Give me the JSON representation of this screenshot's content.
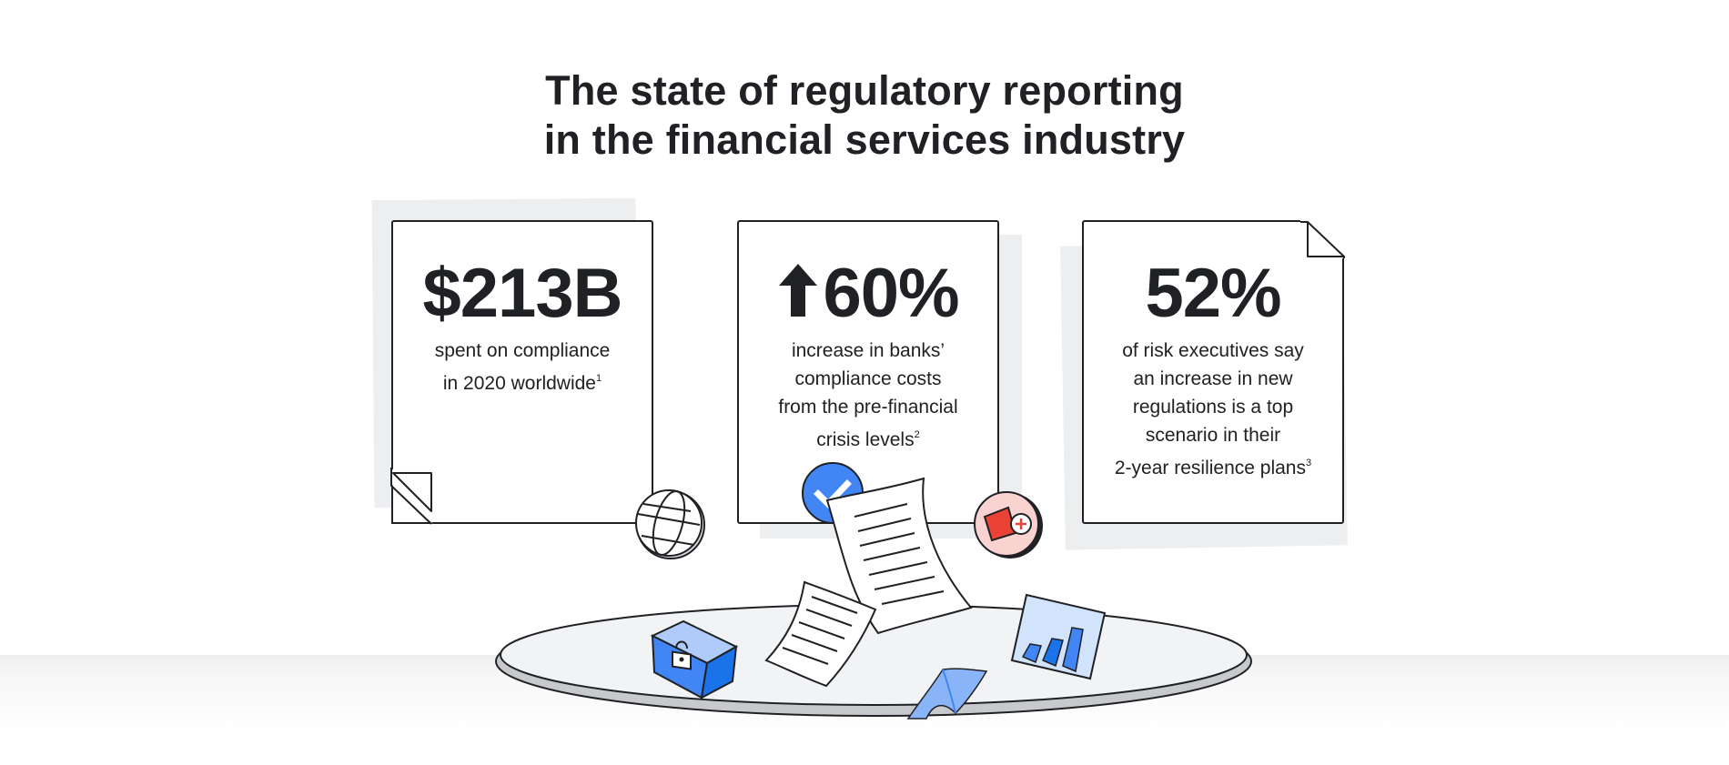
{
  "title": {
    "line1": "The state of regulatory reporting",
    "line2": "in the financial services industry"
  },
  "stats": [
    {
      "value": "$213B",
      "lines": [
        "spent on compliance",
        "in 2020 worldwide"
      ],
      "footnote": "1"
    },
    {
      "value": "60%",
      "prefix_icon": "arrow-up-icon",
      "lines": [
        "increase in banks’",
        "compliance costs",
        "from the pre-financial",
        "crisis levels"
      ],
      "footnote": "2"
    },
    {
      "value": "52%",
      "lines": [
        "of risk executives say",
        "an increase in new",
        "regulations is a top",
        "scenario in their",
        "2-year resilience plans"
      ],
      "footnote": "3"
    }
  ],
  "icons": [
    "globe-icon",
    "checkmark-badge-icon",
    "alert-badge-icon",
    "lock-cube-icon",
    "bar-chart-icon",
    "document-icon"
  ],
  "colors": {
    "text": "#202124",
    "blue": "#4285f4",
    "red": "#ea4335",
    "light_red": "#fad2cf",
    "shadow_gray": "#eceeef"
  }
}
